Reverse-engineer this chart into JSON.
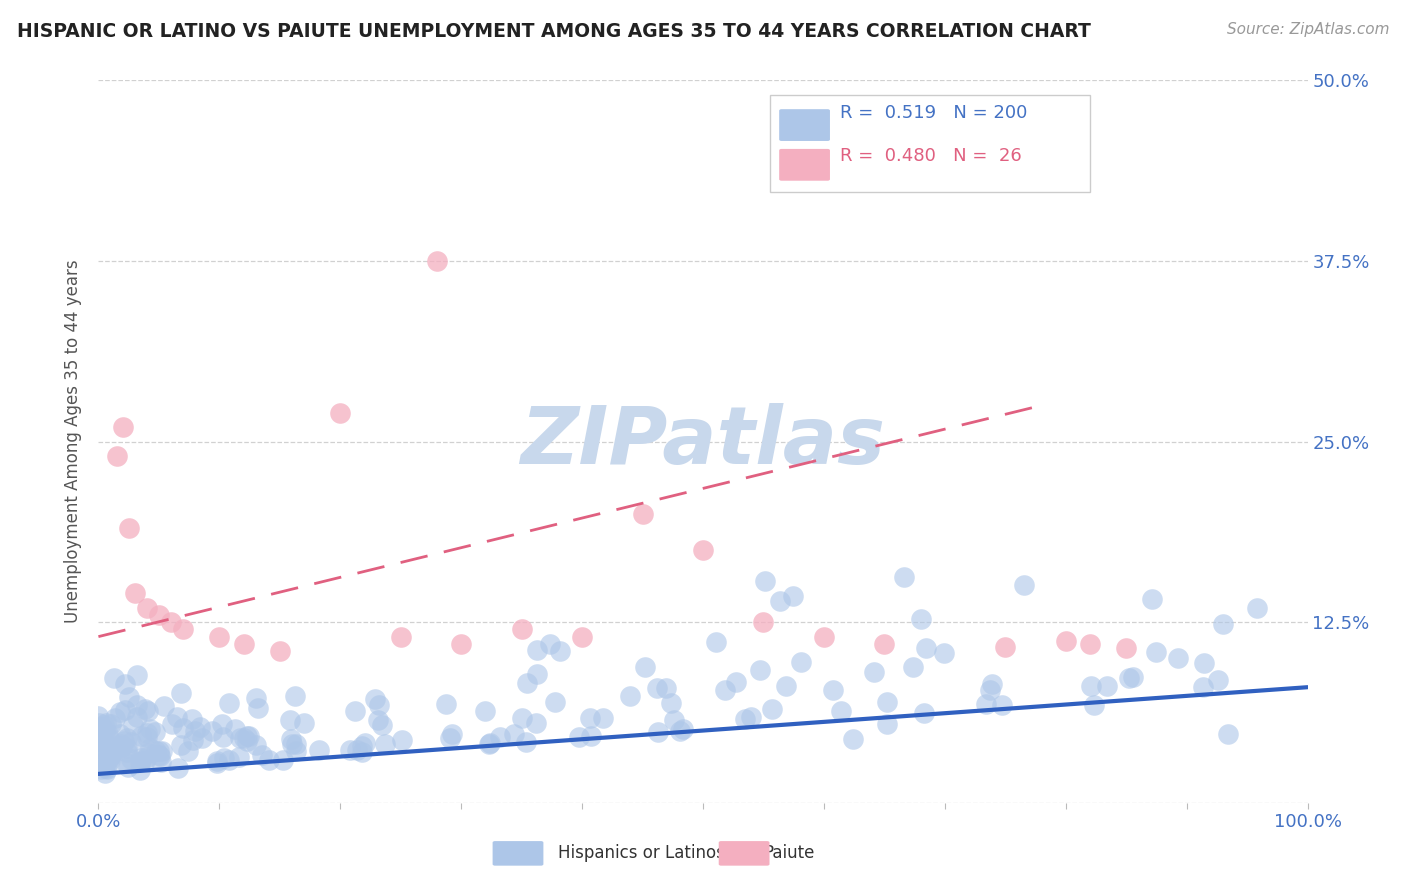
{
  "title": "HISPANIC OR LATINO VS PAIUTE UNEMPLOYMENT AMONG AGES 35 TO 44 YEARS CORRELATION CHART",
  "source": "Source: ZipAtlas.com",
  "ylabel": "Unemployment Among Ages 35 to 44 years",
  "xlim": [
    0.0,
    1.0
  ],
  "ylim": [
    0.0,
    0.5
  ],
  "yticks": [
    0.0,
    0.125,
    0.25,
    0.375,
    0.5
  ],
  "ytick_labels": [
    "",
    "12.5%",
    "25.0%",
    "37.5%",
    "50.0%"
  ],
  "blue_R": 0.519,
  "blue_N": 200,
  "pink_R": 0.48,
  "pink_N": 26,
  "blue_color": "#adc6e8",
  "pink_color": "#f4afc0",
  "blue_line_color": "#3060c0",
  "pink_line_color": "#e06080",
  "background_color": "#ffffff",
  "grid_color": "#cccccc",
  "title_color": "#222222",
  "legend_label_blue": "Hispanics or Latinos",
  "legend_label_pink": "Paiute",
  "watermark": "ZIPatlas",
  "watermark_color": "#c8d8ec",
  "blue_line_y0": 0.02,
  "blue_line_y1": 0.08,
  "pink_line_x0": 0.0,
  "pink_line_x1": 0.78,
  "pink_line_y0": 0.115,
  "pink_line_y1": 0.275
}
